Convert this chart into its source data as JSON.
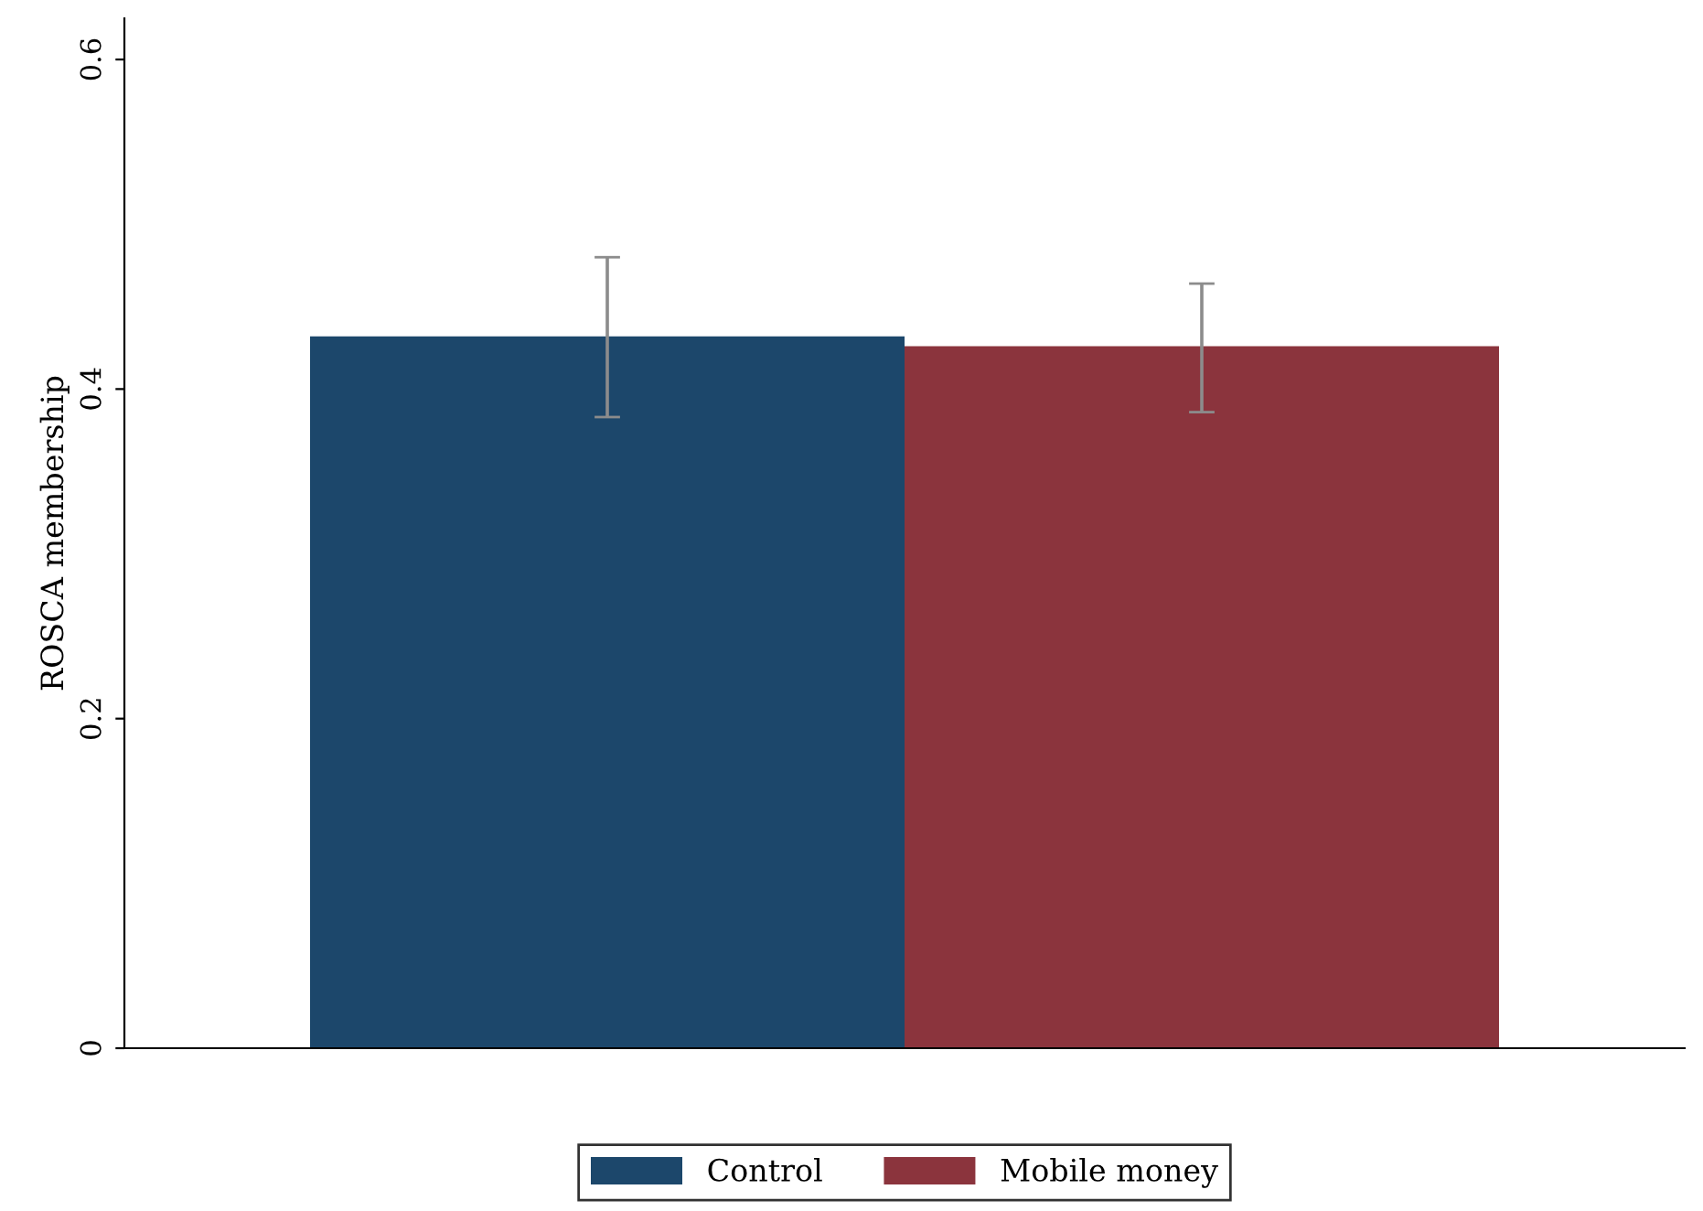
{
  "chart_data": {
    "type": "bar",
    "ylabel": "ROSCA membership",
    "categories": [
      null
    ],
    "series": [
      {
        "name": "Control",
        "color": "#1c476b",
        "values": [
          0.432
        ],
        "errors": [
          [
            0.383,
            0.48
          ]
        ]
      },
      {
        "name": "Mobile money",
        "color": "#8b343d",
        "values": [
          0.426
        ],
        "errors": [
          [
            0.386,
            0.464
          ]
        ]
      }
    ],
    "ylim": [
      0,
      0.625
    ],
    "yticks": [
      0,
      0.2,
      0.4,
      0.6
    ],
    "grid": false,
    "legend": "bottom"
  }
}
